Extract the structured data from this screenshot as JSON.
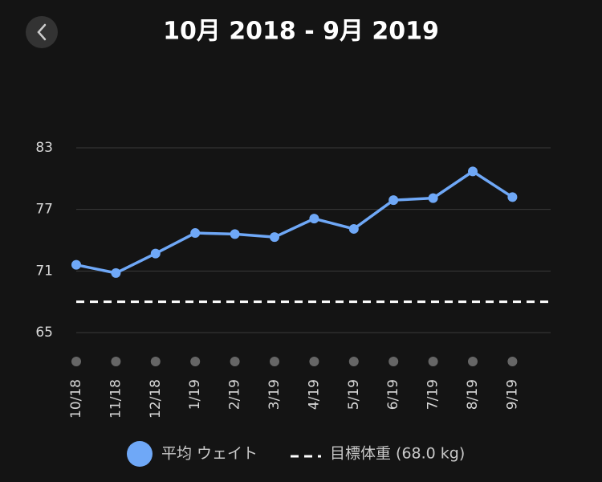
{
  "chart_data": {
    "type": "line",
    "title": "10月 2018 - 9月 2019",
    "categories": [
      "10/18",
      "11/18",
      "12/18",
      "1/19",
      "2/19",
      "3/19",
      "4/19",
      "5/19",
      "6/19",
      "7/19",
      "8/19",
      "9/19"
    ],
    "series": [
      {
        "name": "平均 ウェイト",
        "color": "#6fa8f7",
        "values": [
          71.6,
          70.8,
          72.7,
          74.7,
          74.6,
          74.3,
          76.1,
          75.1,
          77.9,
          78.1,
          80.7,
          78.2
        ]
      }
    ],
    "goal": {
      "label": "目標体重 (68.0 kg)",
      "value": 68.0,
      "color": "#ffffff"
    },
    "ylim": [
      65,
      83
    ],
    "yticks": [
      65,
      71,
      77,
      83
    ],
    "grid": true
  }
}
